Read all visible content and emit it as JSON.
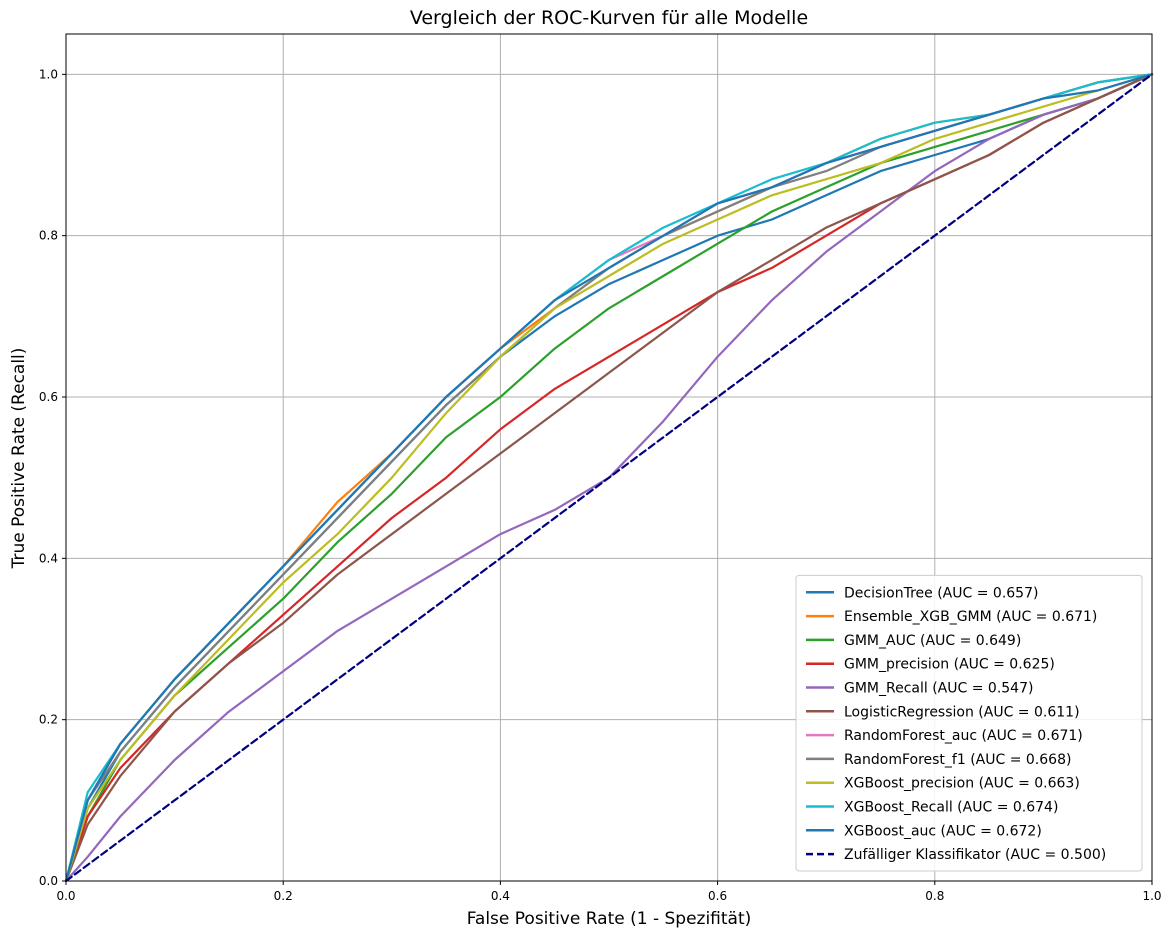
{
  "chart_data": {
    "type": "line",
    "title": "Vergleich der ROC-Kurven für alle Modelle",
    "xlabel": "False Positive Rate (1 - Spezifität)",
    "ylabel": "True Positive Rate (Recall)",
    "xlim": [
      0,
      1
    ],
    "ylim": [
      0,
      1.05
    ],
    "xticks": [
      "0.0",
      "0.2",
      "0.4",
      "0.6",
      "0.8",
      "1.0"
    ],
    "yticks": [
      "0.0",
      "0.2",
      "0.4",
      "0.6",
      "0.8",
      "1.0"
    ],
    "grid": true,
    "legend_position": "lower-right",
    "series": [
      {
        "name": "DecisionTree (AUC = 0.657)",
        "color": "#1f77b4",
        "dashed": false,
        "x": [
          0,
          0.02,
          0.05,
          0.1,
          0.15,
          0.2,
          0.25,
          0.3,
          0.35,
          0.4,
          0.45,
          0.5,
          0.55,
          0.6,
          0.65,
          0.7,
          0.75,
          0.8,
          0.85,
          0.9,
          0.95,
          1.0
        ],
        "y": [
          0,
          0.09,
          0.16,
          0.24,
          0.31,
          0.38,
          0.45,
          0.52,
          0.59,
          0.65,
          0.7,
          0.74,
          0.77,
          0.8,
          0.82,
          0.85,
          0.88,
          0.9,
          0.92,
          0.95,
          0.97,
          1.0
        ]
      },
      {
        "name": "Ensemble_XGB_GMM (AUC = 0.671)",
        "color": "#ff7f0e",
        "dashed": false,
        "x": [
          0,
          0.02,
          0.05,
          0.1,
          0.15,
          0.2,
          0.25,
          0.3,
          0.35,
          0.4,
          0.45,
          0.5,
          0.55,
          0.6,
          0.65,
          0.7,
          0.75,
          0.8,
          0.85,
          0.9,
          0.95,
          1.0
        ],
        "y": [
          0,
          0.1,
          0.17,
          0.25,
          0.32,
          0.39,
          0.47,
          0.53,
          0.6,
          0.66,
          0.71,
          0.76,
          0.8,
          0.83,
          0.86,
          0.89,
          0.92,
          0.94,
          0.95,
          0.97,
          0.99,
          1.0
        ]
      },
      {
        "name": "GMM_AUC (AUC = 0.649)",
        "color": "#2ca02c",
        "dashed": false,
        "x": [
          0,
          0.02,
          0.05,
          0.1,
          0.15,
          0.2,
          0.25,
          0.3,
          0.35,
          0.4,
          0.45,
          0.5,
          0.55,
          0.6,
          0.65,
          0.7,
          0.75,
          0.8,
          0.85,
          0.9,
          0.95,
          1.0
        ],
        "y": [
          0,
          0.08,
          0.15,
          0.23,
          0.29,
          0.35,
          0.42,
          0.48,
          0.55,
          0.6,
          0.66,
          0.71,
          0.75,
          0.79,
          0.83,
          0.86,
          0.89,
          0.91,
          0.93,
          0.95,
          0.97,
          1.0
        ]
      },
      {
        "name": "GMM_precision (AUC = 0.625)",
        "color": "#d62728",
        "dashed": false,
        "x": [
          0,
          0.02,
          0.05,
          0.1,
          0.15,
          0.2,
          0.25,
          0.3,
          0.35,
          0.4,
          0.45,
          0.5,
          0.55,
          0.6,
          0.65,
          0.7,
          0.75,
          0.8,
          0.85,
          0.9,
          0.95,
          1.0
        ],
        "y": [
          0,
          0.08,
          0.14,
          0.21,
          0.27,
          0.33,
          0.39,
          0.45,
          0.5,
          0.56,
          0.61,
          0.65,
          0.69,
          0.73,
          0.76,
          0.8,
          0.84,
          0.87,
          0.9,
          0.94,
          0.97,
          1.0
        ]
      },
      {
        "name": "GMM_Recall (AUC = 0.547)",
        "color": "#9467bd",
        "dashed": false,
        "x": [
          0,
          0.02,
          0.05,
          0.1,
          0.15,
          0.2,
          0.25,
          0.3,
          0.35,
          0.4,
          0.45,
          0.5,
          0.55,
          0.6,
          0.65,
          0.7,
          0.75,
          0.8,
          0.85,
          0.9,
          0.95,
          1.0
        ],
        "y": [
          0,
          0.03,
          0.08,
          0.15,
          0.21,
          0.26,
          0.31,
          0.35,
          0.39,
          0.43,
          0.46,
          0.5,
          0.57,
          0.65,
          0.72,
          0.78,
          0.83,
          0.88,
          0.92,
          0.95,
          0.97,
          1.0
        ]
      },
      {
        "name": "LogisticRegression (AUC = 0.611)",
        "color": "#8c564b",
        "dashed": false,
        "x": [
          0,
          0.02,
          0.05,
          0.1,
          0.15,
          0.2,
          0.25,
          0.3,
          0.35,
          0.4,
          0.45,
          0.5,
          0.55,
          0.6,
          0.65,
          0.7,
          0.75,
          0.8,
          0.85,
          0.9,
          0.95,
          1.0
        ],
        "y": [
          0,
          0.07,
          0.13,
          0.21,
          0.27,
          0.32,
          0.38,
          0.43,
          0.48,
          0.53,
          0.58,
          0.63,
          0.68,
          0.73,
          0.77,
          0.81,
          0.84,
          0.87,
          0.9,
          0.94,
          0.97,
          1.0
        ]
      },
      {
        "name": "RandomForest_auc (AUC = 0.671)",
        "color": "#e377c2",
        "dashed": false,
        "x": [
          0,
          0.02,
          0.05,
          0.1,
          0.15,
          0.2,
          0.25,
          0.3,
          0.35,
          0.4,
          0.45,
          0.5,
          0.55,
          0.6,
          0.65,
          0.7,
          0.75,
          0.8,
          0.85,
          0.9,
          0.95,
          1.0
        ],
        "y": [
          0,
          0.1,
          0.17,
          0.25,
          0.32,
          0.39,
          0.46,
          0.53,
          0.6,
          0.66,
          0.72,
          0.77,
          0.8,
          0.84,
          0.86,
          0.89,
          0.91,
          0.93,
          0.95,
          0.97,
          0.99,
          1.0
        ]
      },
      {
        "name": "RandomForest_f1 (AUC = 0.668)",
        "color": "#7f7f7f",
        "dashed": false,
        "x": [
          0,
          0.02,
          0.05,
          0.1,
          0.15,
          0.2,
          0.25,
          0.3,
          0.35,
          0.4,
          0.45,
          0.5,
          0.55,
          0.6,
          0.65,
          0.7,
          0.75,
          0.8,
          0.85,
          0.9,
          0.95,
          1.0
        ],
        "y": [
          0,
          0.1,
          0.16,
          0.24,
          0.31,
          0.38,
          0.45,
          0.52,
          0.59,
          0.65,
          0.71,
          0.76,
          0.8,
          0.83,
          0.86,
          0.88,
          0.91,
          0.93,
          0.95,
          0.97,
          0.99,
          1.0
        ]
      },
      {
        "name": "XGBoost_precision (AUC = 0.663)",
        "color": "#bcbd22",
        "dashed": false,
        "x": [
          0,
          0.02,
          0.05,
          0.1,
          0.15,
          0.2,
          0.25,
          0.3,
          0.35,
          0.4,
          0.45,
          0.5,
          0.55,
          0.6,
          0.65,
          0.7,
          0.75,
          0.8,
          0.85,
          0.9,
          0.95,
          1.0
        ],
        "y": [
          0,
          0.09,
          0.15,
          0.23,
          0.3,
          0.37,
          0.43,
          0.5,
          0.58,
          0.65,
          0.71,
          0.75,
          0.79,
          0.82,
          0.85,
          0.87,
          0.89,
          0.92,
          0.94,
          0.96,
          0.98,
          1.0
        ]
      },
      {
        "name": "XGBoost_Recall (AUC = 0.674)",
        "color": "#17becf",
        "dashed": false,
        "x": [
          0,
          0.02,
          0.05,
          0.1,
          0.15,
          0.2,
          0.25,
          0.3,
          0.35,
          0.4,
          0.45,
          0.5,
          0.55,
          0.6,
          0.65,
          0.7,
          0.75,
          0.8,
          0.85,
          0.9,
          0.95,
          1.0
        ],
        "y": [
          0,
          0.11,
          0.17,
          0.25,
          0.32,
          0.39,
          0.46,
          0.53,
          0.6,
          0.66,
          0.72,
          0.77,
          0.81,
          0.84,
          0.87,
          0.89,
          0.92,
          0.94,
          0.95,
          0.97,
          0.99,
          1.0
        ]
      },
      {
        "name": "XGBoost_auc (AUC = 0.672)",
        "color": "#1f77b4",
        "dashed": false,
        "x": [
          0,
          0.02,
          0.05,
          0.1,
          0.15,
          0.2,
          0.25,
          0.3,
          0.35,
          0.4,
          0.45,
          0.5,
          0.55,
          0.6,
          0.65,
          0.7,
          0.75,
          0.8,
          0.85,
          0.9,
          0.95,
          1.0
        ],
        "y": [
          0,
          0.1,
          0.17,
          0.25,
          0.32,
          0.39,
          0.46,
          0.53,
          0.6,
          0.66,
          0.72,
          0.76,
          0.8,
          0.84,
          0.86,
          0.89,
          0.91,
          0.93,
          0.95,
          0.97,
          0.98,
          1.0
        ]
      },
      {
        "name": "Zufälliger Klassifikator (AUC = 0.500)",
        "color": "#000080",
        "dashed": true,
        "x": [
          0,
          1
        ],
        "y": [
          0,
          1
        ]
      }
    ]
  }
}
